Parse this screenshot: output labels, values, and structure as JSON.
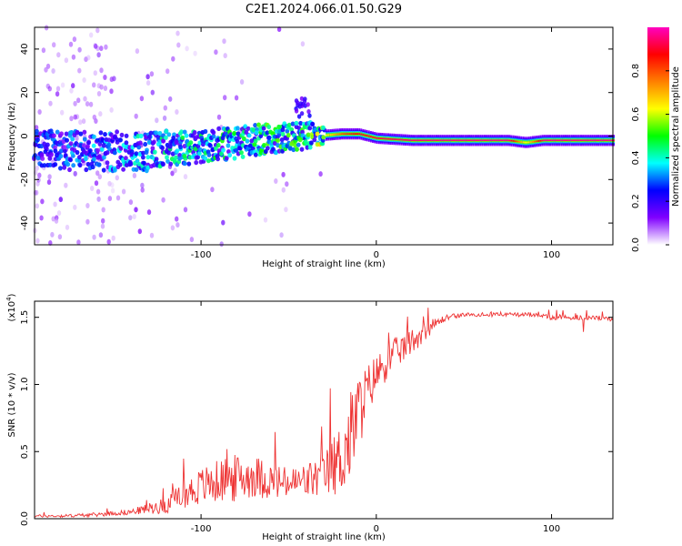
{
  "figure_title": "C2E1.2024.066.01.50.G29",
  "chart_data": [
    {
      "type": "heatmap",
      "title": "",
      "xlabel": "Height of straight line (km)",
      "ylabel": "Frequency (Hz)",
      "xlim": [
        -195,
        135
      ],
      "ylim": [
        -50,
        50
      ],
      "x_ticks": [
        -100,
        0,
        100
      ],
      "x_tick_labels": [
        "-100",
        "0",
        "100"
      ],
      "y_ticks": [
        -40,
        -20,
        0,
        20,
        40
      ],
      "y_tick_labels": [
        "-40",
        "-20",
        "0",
        "20",
        "40"
      ],
      "colorbar": {
        "label": "Normalized spectral amplitude",
        "range": [
          0,
          1
        ],
        "ticks": [
          0.0,
          0.2,
          0.4,
          0.6,
          0.8
        ],
        "tick_labels": [
          "0.0",
          "0.2",
          "0.4",
          "0.6",
          "0.8"
        ],
        "colormap": [
          "#ffffff",
          "#8000ff",
          "#0000ff",
          "#00ffff",
          "#00ff00",
          "#ffff00",
          "#ff8000",
          "#ff0000",
          "#ff00c0"
        ]
      },
      "ridge": {
        "x": [
          -195,
          -160,
          -130,
          -100,
          -80,
          -60,
          -45,
          -35,
          -20,
          -10,
          -5,
          0,
          20,
          50,
          75,
          85,
          95,
          110,
          135
        ],
        "frequency": [
          -6,
          -7,
          -7,
          -5,
          -3,
          -1,
          0,
          0,
          1,
          1,
          0,
          -1,
          -2,
          -2,
          -2,
          -3,
          -2,
          -2,
          -2
        ],
        "amplitude": [
          0.25,
          0.3,
          0.35,
          0.4,
          0.42,
          0.45,
          0.45,
          0.5,
          0.8,
          0.9,
          0.9,
          0.92,
          0.95,
          0.96,
          0.96,
          0.6,
          0.96,
          0.96,
          0.96
        ]
      },
      "grid": false
    },
    {
      "type": "line",
      "title": "",
      "xlabel": "Height of straight line (km)",
      "ylabel": "SNR (10 * v/v)",
      "y_scale_label": "(x10",
      "y_scale_exponent": "4",
      "y_scale_close": ")",
      "xlim": [
        -195,
        135
      ],
      "ylim": [
        0,
        1.62
      ],
      "x_ticks": [
        -100,
        0,
        100
      ],
      "x_tick_labels": [
        "-100",
        "0",
        "100"
      ],
      "y_ticks": [
        0.0,
        0.5,
        1.0,
        1.5
      ],
      "y_tick_labels": [
        "0.0",
        "0.5",
        "1.0",
        "1.5"
      ],
      "series": [
        {
          "color": "#ee3333",
          "x": [
            -195,
            -180,
            -160,
            -140,
            -120,
            -110,
            -100,
            -90,
            -80,
            -70,
            -60,
            -50,
            -40,
            -30,
            -20,
            -15,
            -10,
            -5,
            0,
            10,
            20,
            30,
            40,
            50,
            60,
            70,
            80,
            90,
            100,
            110,
            120,
            135
          ],
          "values": [
            0.02,
            0.02,
            0.03,
            0.05,
            0.1,
            0.18,
            0.24,
            0.28,
            0.3,
            0.32,
            0.28,
            0.26,
            0.28,
            0.32,
            0.45,
            0.6,
            0.8,
            0.95,
            1.08,
            1.22,
            1.32,
            1.42,
            1.5,
            1.52,
            1.52,
            1.52,
            1.52,
            1.52,
            1.5,
            1.5,
            1.5,
            1.49
          ],
          "noise": [
            0.01,
            0.01,
            0.015,
            0.02,
            0.06,
            0.1,
            0.14,
            0.16,
            0.18,
            0.16,
            0.14,
            0.12,
            0.14,
            0.16,
            0.28,
            0.35,
            0.3,
            0.2,
            0.15,
            0.12,
            0.1,
            0.06,
            0.02,
            0.015,
            0.015,
            0.015,
            0.015,
            0.015,
            0.02,
            0.02,
            0.02,
            0.02
          ]
        }
      ],
      "grid": false
    }
  ]
}
